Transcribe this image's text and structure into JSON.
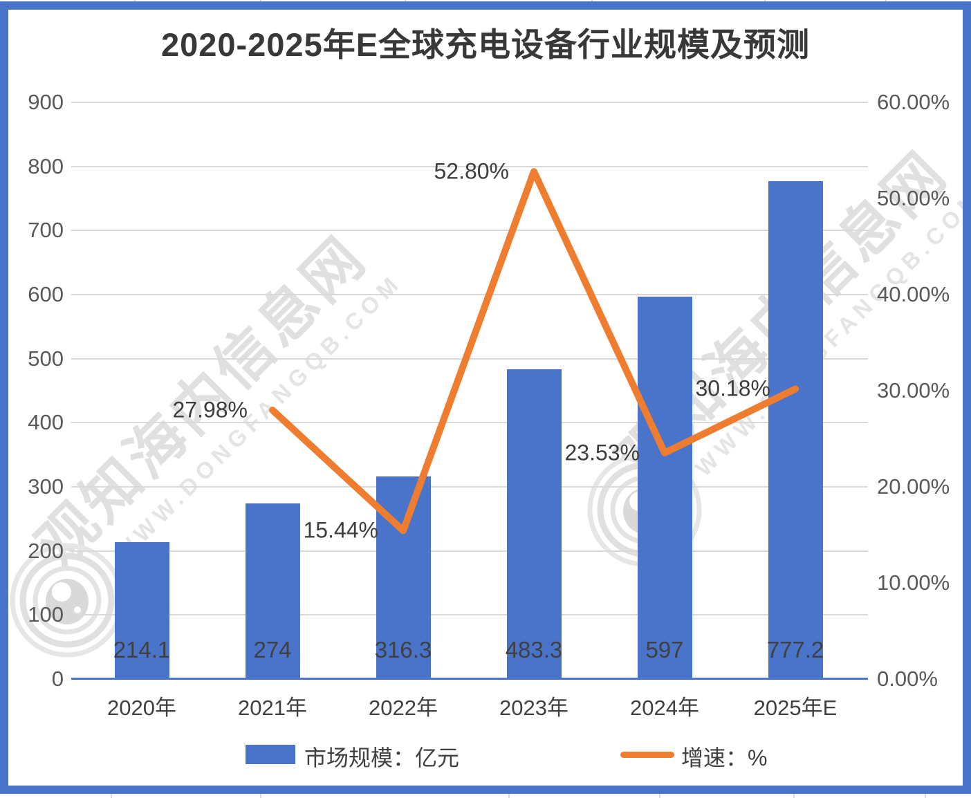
{
  "title": {
    "text": "2020-2025年E全球充电设备行业规模及预测"
  },
  "watermark": {
    "cn": "观知海内信息网",
    "en": "WWW.DONGFANGQB.COM"
  },
  "legend": {
    "items": [
      {
        "label": "市场规模：亿元",
        "type": "bar",
        "color": "#4A74C9"
      },
      {
        "label": "增速：%",
        "type": "line",
        "color": "#EE7D2F"
      }
    ]
  },
  "colors": {
    "bar": "#4A74C9",
    "line": "#EE7D2F",
    "frame": "#4A74C9",
    "gridline": "#D9D9D9",
    "tick_text": "#595959",
    "label_text": "#404040"
  },
  "chart_data": {
    "type": "combo",
    "categories": [
      "2020年",
      "2021年",
      "2022年",
      "2023年",
      "2024年",
      "2025年E"
    ],
    "series": [
      {
        "name": "市场规模：亿元",
        "type": "bar",
        "axis": "left",
        "values": [
          214.1,
          274,
          316.3,
          483.3,
          597,
          777.2
        ],
        "value_labels": [
          "214.1",
          "274",
          "316.3",
          "483.3",
          "597",
          "777.2"
        ],
        "color": "#4A74C9"
      },
      {
        "name": "增速：%",
        "type": "line",
        "axis": "right",
        "values": [
          null,
          27.98,
          15.44,
          52.8,
          23.53,
          30.18
        ],
        "value_labels": [
          "",
          "27.98%",
          "15.44%",
          "52.80%",
          "23.53%",
          "30.18%"
        ],
        "color": "#EE7D2F"
      }
    ],
    "left_axis": {
      "min": 0,
      "max": 900,
      "step": 100,
      "ticks": [
        "900",
        "800",
        "700",
        "600",
        "500",
        "400",
        "300",
        "200",
        "100",
        "0"
      ]
    },
    "right_axis": {
      "min": 0,
      "max": 60,
      "step": 10,
      "ticks": [
        "60.00%",
        "50.00%",
        "40.00%",
        "30.00%",
        "20.00%",
        "10.00%",
        "0.00%"
      ]
    },
    "grid": "horizontal",
    "legend_position": "bottom"
  }
}
